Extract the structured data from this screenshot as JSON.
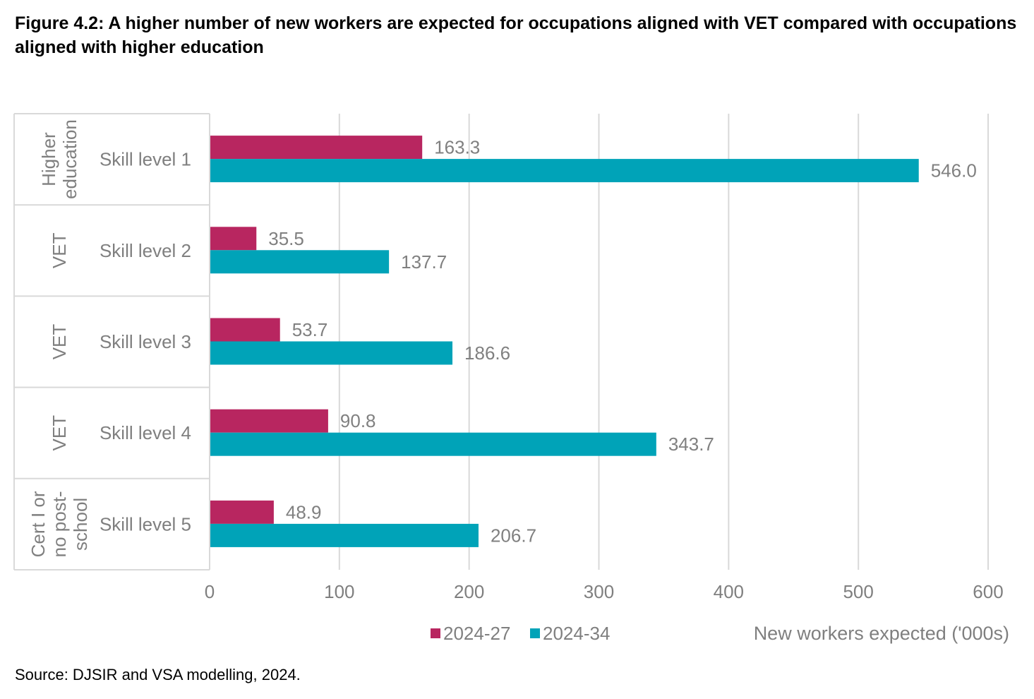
{
  "title": "Figure 4.2: A higher number of new workers are expected for occupations aligned with VET compared with occupations aligned with higher education",
  "source": "Source:  DJSIR and VSA modelling, 2024.",
  "colors": {
    "series_a": "#b82660",
    "series_b": "#00a3b8",
    "grid": "#d9d9d9",
    "label_text": "#808080",
    "axis_text": "#7f7f7f"
  },
  "chart_data": {
    "type": "bar",
    "orientation": "horizontal",
    "categories": [
      "Skill level 1",
      "Skill level 2",
      "Skill level 3",
      "Skill level 4",
      "Skill level 5"
    ],
    "groups": [
      "Higher education",
      "VET",
      "VET",
      "VET",
      "Cert I or no post-school"
    ],
    "series": [
      {
        "name": "2024-27",
        "values": [
          163.3,
          35.5,
          53.7,
          90.8,
          48.9
        ],
        "labels": [
          "163.3",
          "35.5",
          "53.7",
          "90.8",
          "48.9"
        ]
      },
      {
        "name": "2024-34",
        "values": [
          546.0,
          137.7,
          186.6,
          343.7,
          206.7
        ],
        "labels": [
          "546.0",
          "137.7",
          "186.6",
          "343.7",
          "206.7"
        ]
      }
    ],
    "xlim": [
      0,
      600
    ],
    "xticks": [
      "0",
      "100",
      "200",
      "300",
      "400",
      "500",
      "600"
    ],
    "xlabel": "New workers expected ('000s)",
    "ylabel": "",
    "grid": true,
    "legend": "bottom"
  }
}
